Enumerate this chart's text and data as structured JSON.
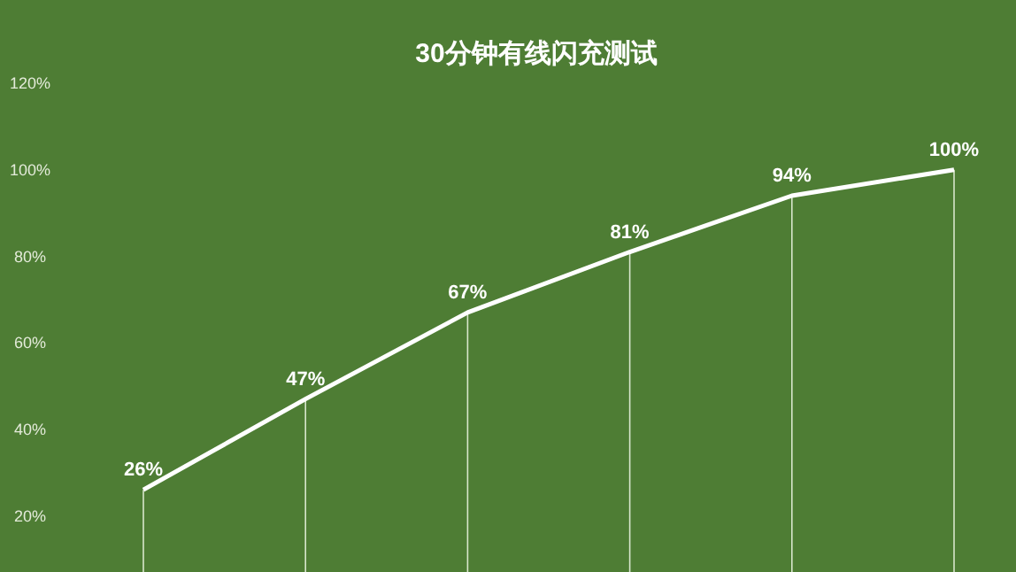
{
  "chart_data": {
    "type": "line",
    "title": "30分钟有线闪充测试",
    "categories": [
      null,
      null,
      null,
      null,
      null,
      null
    ],
    "series": [
      {
        "color": "#ffffff",
        "values": [
          26,
          47,
          67,
          81,
          94,
          100
        ]
      }
    ],
    "value_labels": [
      "26%",
      "47%",
      "67%",
      "81%",
      "94%",
      "100%"
    ],
    "ylim": [
      7,
      120
    ],
    "yticks": [
      {
        "value": 20,
        "label": "20%"
      },
      {
        "value": 40,
        "label": "40%"
      },
      {
        "value": 60,
        "label": "60%"
      },
      {
        "value": 80,
        "label": "80%"
      },
      {
        "value": 100,
        "label": "100%"
      },
      {
        "value": 120,
        "label": "120%"
      }
    ],
    "grid": false,
    "marker": "none",
    "line_style": "solid"
  }
}
